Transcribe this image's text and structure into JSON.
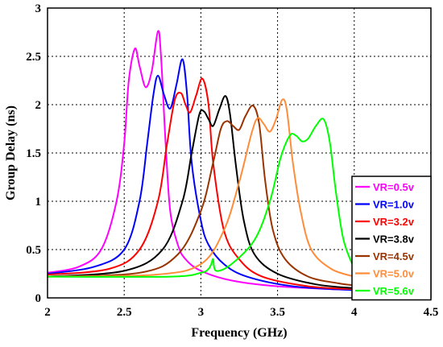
{
  "chart_data": {
    "type": "line",
    "xlabel": "Frequency (GHz)",
    "ylabel": "Group Delay (ns)",
    "xlim": [
      2,
      4.5
    ],
    "ylim": [
      0,
      3
    ],
    "x_ticks": [
      "2",
      "2.5",
      "3",
      "3.5",
      "4",
      "4.5"
    ],
    "y_ticks": [
      "0",
      "0.5",
      "1",
      "1.5",
      "2",
      "2.5",
      "3"
    ],
    "grid": true,
    "legend_position": "bottom-right",
    "series": [
      {
        "name": "VR=0.5v",
        "color": "#ff00ff",
        "x": [
          2.0,
          2.2,
          2.35,
          2.45,
          2.5,
          2.53,
          2.57,
          2.6,
          2.64,
          2.68,
          2.72,
          2.74,
          2.77,
          2.8,
          2.85,
          2.9,
          3.0,
          3.2,
          3.5,
          4.0
        ],
        "y": [
          0.26,
          0.32,
          0.5,
          1.0,
          1.6,
          2.25,
          2.58,
          2.4,
          2.18,
          2.35,
          2.76,
          2.5,
          1.6,
          0.9,
          0.55,
          0.4,
          0.28,
          0.18,
          0.12,
          0.08
        ]
      },
      {
        "name": "VR=1.0v",
        "color": "#0000ff",
        "x": [
          2.0,
          2.3,
          2.5,
          2.6,
          2.65,
          2.69,
          2.72,
          2.76,
          2.8,
          2.84,
          2.88,
          2.91,
          2.94,
          3.0,
          3.05,
          3.15,
          3.3,
          3.6,
          4.0
        ],
        "y": [
          0.25,
          0.32,
          0.5,
          1.0,
          1.6,
          2.1,
          2.3,
          2.1,
          1.96,
          2.2,
          2.47,
          2.1,
          1.4,
          0.8,
          0.55,
          0.35,
          0.22,
          0.12,
          0.08
        ]
      },
      {
        "name": "VR=3.2v",
        "color": "#ff0000",
        "x": [
          2.0,
          2.4,
          2.6,
          2.72,
          2.78,
          2.83,
          2.87,
          2.9,
          2.93,
          2.97,
          3.01,
          3.05,
          3.08,
          3.15,
          3.25,
          3.4,
          3.7,
          4.0
        ],
        "y": [
          0.24,
          0.3,
          0.5,
          1.0,
          1.6,
          2.05,
          2.12,
          2.0,
          1.92,
          2.1,
          2.27,
          2.0,
          1.4,
          0.7,
          0.4,
          0.22,
          0.12,
          0.09
        ]
      },
      {
        "name": "VR=3.8v",
        "color": "#000000",
        "x": [
          2.0,
          2.5,
          2.75,
          2.88,
          2.94,
          2.99,
          3.02,
          3.05,
          3.08,
          3.12,
          3.16,
          3.19,
          3.23,
          3.28,
          3.35,
          3.5,
          3.75,
          4.0
        ],
        "y": [
          0.22,
          0.28,
          0.5,
          1.0,
          1.5,
          1.9,
          1.93,
          1.85,
          1.78,
          1.95,
          2.09,
          1.9,
          1.35,
          0.8,
          0.45,
          0.25,
          0.14,
          0.1
        ]
      },
      {
        "name": "VR=4.5v",
        "color": "#993300",
        "x": [
          2.0,
          2.6,
          2.85,
          3.0,
          3.08,
          3.13,
          3.17,
          3.21,
          3.25,
          3.29,
          3.34,
          3.38,
          3.42,
          3.47,
          3.55,
          3.7,
          3.9,
          4.0
        ],
        "y": [
          0.22,
          0.26,
          0.45,
          0.9,
          1.4,
          1.75,
          1.83,
          1.78,
          1.74,
          1.88,
          1.99,
          1.8,
          1.2,
          0.7,
          0.4,
          0.22,
          0.15,
          0.13
        ]
      },
      {
        "name": "VR=5.0v",
        "color": "#ff8c3a",
        "x": [
          2.0,
          2.7,
          3.0,
          3.15,
          3.25,
          3.33,
          3.37,
          3.41,
          3.45,
          3.49,
          3.53,
          3.56,
          3.6,
          3.65,
          3.72,
          3.85,
          4.0
        ],
        "y": [
          0.22,
          0.24,
          0.35,
          0.7,
          1.2,
          1.7,
          1.86,
          1.8,
          1.72,
          1.85,
          2.05,
          1.95,
          1.4,
          0.9,
          0.5,
          0.3,
          0.22
        ]
      },
      {
        "name": "VR=5.6v",
        "color": "#00ff00",
        "x": [
          2.0,
          2.8,
          3.0,
          3.05,
          3.07,
          3.08,
          3.1,
          3.2,
          3.35,
          3.45,
          3.52,
          3.58,
          3.62,
          3.66,
          3.7,
          3.75,
          3.8,
          3.84,
          3.88,
          3.93,
          4.0
        ],
        "y": [
          0.22,
          0.22,
          0.26,
          0.3,
          0.36,
          0.4,
          0.28,
          0.35,
          0.6,
          1.0,
          1.45,
          1.68,
          1.68,
          1.62,
          1.65,
          1.78,
          1.85,
          1.62,
          1.1,
          0.6,
          0.3
        ]
      }
    ]
  }
}
